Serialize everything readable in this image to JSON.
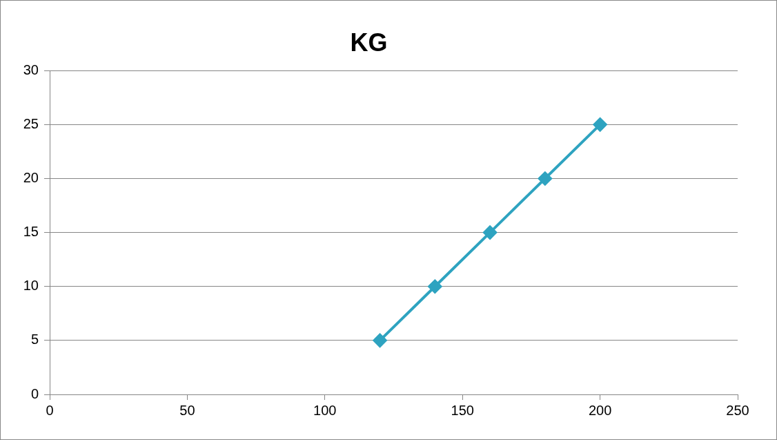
{
  "chart_data": {
    "type": "line",
    "title": "KG",
    "x": [
      120,
      140,
      160,
      180,
      200
    ],
    "series": [
      {
        "color": "#2ea3c0",
        "values": [
          5,
          10,
          15,
          20,
          25
        ]
      }
    ],
    "xlim": [
      0,
      250
    ],
    "xticks": [
      0,
      50,
      100,
      150,
      200,
      250
    ],
    "ylim": [
      0,
      30
    ],
    "yticks": [
      0,
      5,
      10,
      15,
      20,
      25,
      30
    ],
    "grid": "y",
    "legend": false,
    "marker": "diamond",
    "line_style": "solid"
  }
}
